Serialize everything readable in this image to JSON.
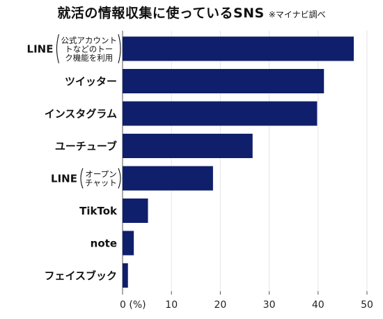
{
  "title": "就活の情報収集に使っているSNS",
  "source_note": "※マイナビ調べ",
  "chart_data": {
    "type": "bar",
    "orientation": "horizontal",
    "categories": [
      {
        "main": "LINE",
        "sub": [
          "公式アカウント",
          "トなどのトー",
          "ク機能を利用"
        ]
      },
      {
        "main": "ツイッター",
        "sub": []
      },
      {
        "main": "インスタグラム",
        "sub": []
      },
      {
        "main": "ユーチューブ",
        "sub": []
      },
      {
        "main": "LINE",
        "sub": [
          "オープン",
          "チャット"
        ]
      },
      {
        "main": "TikTok",
        "sub": []
      },
      {
        "main": "note",
        "sub": []
      },
      {
        "main": "フェイスブック",
        "sub": []
      }
    ],
    "values": [
      47.3,
      41.2,
      39.8,
      26.6,
      18.5,
      5.2,
      2.3,
      1.1
    ],
    "xlim": [
      0,
      50
    ],
    "xticks": [
      0,
      10,
      20,
      30,
      40,
      50
    ],
    "xtick_labels": [
      "0 (%)",
      "10",
      "20",
      "30",
      "40",
      "50"
    ],
    "bar_color": "#0f1f6b",
    "grid": true,
    "grid_color": "#e6e6e6"
  }
}
